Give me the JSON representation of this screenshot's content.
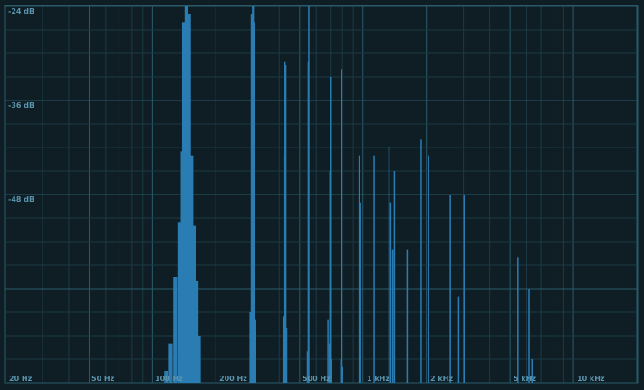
{
  "analyzer": {
    "db_labels": [
      "-24 dB",
      "-36 dB",
      "-48 dB"
    ],
    "freq_labels": [
      "20 Hz",
      "50 Hz",
      "100 Hz",
      "200 Hz",
      "500 Hz",
      "1 kHz",
      "2 kHz",
      "5 kHz",
      "10 kHz"
    ],
    "colors": {
      "background": "#0f1e24",
      "grid_minor": "#1c3a44",
      "grid_major": "#2a5a6a",
      "bars": "#2a7db3",
      "label": "#5a93ad"
    }
  },
  "chart_data": {
    "type": "bar",
    "xscale": "log",
    "xlim_hz": [
      20,
      20000
    ],
    "ylim_db": [
      -24,
      -72
    ],
    "grid": true,
    "xlabel": "",
    "ylabel": "",
    "series": [
      {
        "values": [
          [
            116,
            -70.5
          ],
          [
            122,
            -67
          ],
          [
            128,
            -58.5
          ],
          [
            134,
            -51.5
          ],
          [
            139,
            -42.5
          ],
          [
            141,
            -26
          ],
          [
            145,
            -24
          ],
          [
            149,
            -25
          ],
          [
            153,
            -43
          ],
          [
            157,
            -52
          ],
          [
            162,
            -59
          ],
          [
            166,
            -66
          ],
          [
            292,
            -63
          ],
          [
            296,
            -25
          ],
          [
            300,
            -24
          ],
          [
            304,
            -26
          ],
          [
            308,
            -64
          ],
          [
            418,
            -63.5
          ],
          [
            422,
            -43
          ],
          [
            426,
            -31
          ],
          [
            430,
            -31.5
          ],
          [
            434,
            -65
          ],
          [
            545,
            -68
          ],
          [
            550,
            -31
          ],
          [
            553,
            -24
          ],
          [
            682,
            -64
          ],
          [
            693,
            -67
          ],
          [
            697,
            -45
          ],
          [
            700,
            -33
          ],
          [
            706,
            -69
          ],
          [
            785,
            -69
          ],
          [
            793,
            -32
          ],
          [
            800,
            -70
          ],
          [
            960,
            -43
          ],
          [
            975,
            -49
          ],
          [
            1130,
            -43
          ],
          [
            1330,
            -42
          ],
          [
            1355,
            -49
          ],
          [
            1385,
            -55
          ],
          [
            1410,
            -45
          ],
          [
            1620,
            -55
          ],
          [
            1890,
            -41
          ],
          [
            2050,
            -43
          ],
          [
            2600,
            -48
          ],
          [
            2850,
            -61
          ],
          [
            3020,
            -48
          ],
          [
            5200,
            -72
          ],
          [
            5450,
            -56
          ],
          [
            6150,
            -60
          ],
          [
            6350,
            -69
          ]
        ]
      }
    ]
  }
}
